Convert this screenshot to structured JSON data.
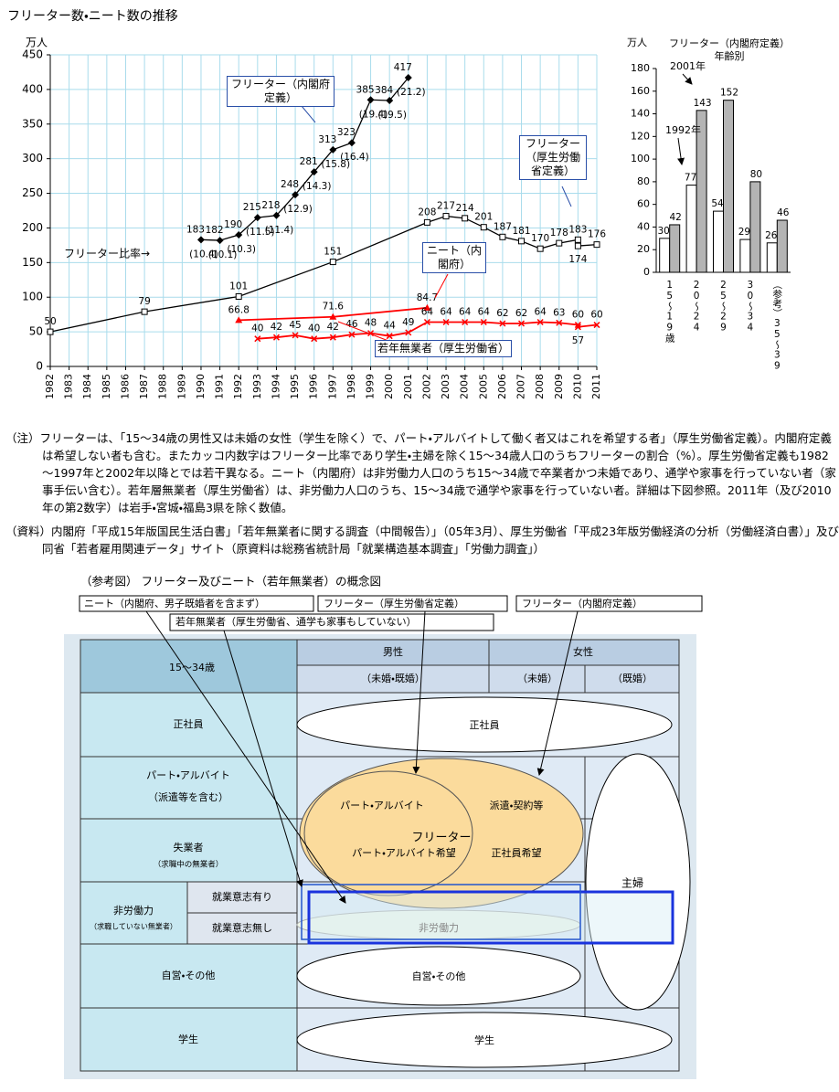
{
  "chart_data": [
    {
      "type": "line",
      "title": "フリーター数・ニート数の推移",
      "y_unit": "万人",
      "xlim": [
        1982,
        2011
      ],
      "xticks": [
        1982,
        1983,
        1984,
        1985,
        1986,
        1987,
        1988,
        1989,
        1990,
        1991,
        1992,
        1993,
        1994,
        1995,
        1996,
        1997,
        1998,
        1999,
        2000,
        2001,
        2002,
        2003,
        2004,
        2005,
        2006,
        2007,
        2008,
        2009,
        2010,
        2011
      ],
      "ylim": [
        0,
        450
      ],
      "yticks": [
        0,
        50,
        100,
        150,
        200,
        250,
        300,
        350,
        400,
        450
      ],
      "grid": true,
      "ratio_label": "フリーター比率→",
      "series": [
        {
          "name": "フリーター（内閣府定義）",
          "color": "#000000",
          "marker": "diamond",
          "x": [
            1990,
            1991,
            1992,
            1993,
            1994,
            1995,
            1996,
            1997,
            1998,
            1999,
            2000,
            2001
          ],
          "values": [
            183,
            182,
            190,
            215,
            218,
            248,
            281,
            313,
            323,
            385,
            384,
            417
          ],
          "ratio_labels": [
            "(10.4)",
            "(10.1)",
            "(10.3)",
            "(11.5)",
            "(11.4)",
            "(12.9)",
            "(14.3)",
            "(15.8)",
            "(16.4)",
            "(19.4)",
            "(19.5)",
            "(21.2)"
          ]
        },
        {
          "name": "フリーター（厚生労働省定義）",
          "color": "#000000",
          "marker": "square",
          "x": [
            1982,
            1987,
            1992,
            1997,
            2002,
            2003,
            2004,
            2005,
            2006,
            2007,
            2008,
            2009,
            2010,
            2010,
            2011
          ],
          "values": [
            50,
            79,
            101,
            151,
            208,
            217,
            214,
            201,
            187,
            181,
            170,
            178,
            183,
            174,
            176
          ]
        },
        {
          "name": "ニート（内閣府）",
          "color": "#ff0000",
          "marker": "triangle",
          "x": [
            1992,
            1997,
            2002
          ],
          "values": [
            66.8,
            71.6,
            84.7
          ]
        },
        {
          "name": "若年無業者（厚生労働省）",
          "color": "#ff0000",
          "marker": "x",
          "x": [
            1993,
            1994,
            1995,
            1996,
            1997,
            1998,
            1999,
            2000,
            2001,
            2002,
            2003,
            2004,
            2005,
            2006,
            2007,
            2008,
            2009,
            2010,
            2010,
            2011
          ],
          "values": [
            40,
            42,
            45,
            40,
            42,
            46,
            48,
            44,
            49,
            64,
            64,
            64,
            64,
            62,
            62,
            64,
            63,
            60,
            57,
            60
          ]
        }
      ]
    },
    {
      "type": "bar",
      "title": "フリーター（内閣府定義）年齢別",
      "y_unit": "万人",
      "categories": [
        "15～19歳",
        "20～24",
        "25～29",
        "30～34",
        "（参考）35～39"
      ],
      "ylim": [
        0,
        180
      ],
      "yticks": [
        0,
        20,
        40,
        60,
        80,
        100,
        120,
        140,
        160,
        180
      ],
      "grid": false,
      "series": [
        {
          "name": "1992年",
          "color": "#ffffff",
          "values": [
            30,
            77,
            54,
            29,
            26
          ]
        },
        {
          "name": "2001年",
          "color": "#b4b4b4",
          "values": [
            42,
            143,
            152,
            80,
            46
          ]
        }
      ]
    }
  ],
  "notes": [
    "（注）フリーターは、「15～34歳の男性又は未婚の女性（学生を除く）で、パート・アルバイトして働く者又はこれを希望する者」（厚生労働省定義）。内閣府定義は希望しない者も含む。またカッコ内数字はフリーター比率であり学生・主婦を除く15～34歳人口のうちフリーターの割合（%）。厚生労働省定義も1982～1997年と2002年以降とでは若干異なる。ニート（内閣府）は非労働力人口のうち15～34歳で卒業者かつ未婚であり、通学や家事を行っていない者（家事手伝い含む）。若年層無業者（厚生労働省）は、非労働力人口のうち、15～34歳で通学や家事を行っていない者。詳細は下図参照。2011年（及び2010年の第2数字）は岩手・宮城・福島3県を除く数値。",
    "（資料）内閣府「平成15年版国民生活白書」「若年無業者に関する調査（中間報告）」（05年3月）、厚生労働省「平成23年版労働経済の分析（労働経済白書）」及び同省「若者雇用関連データ」サイト（原資料は総務省統計局「就業構造基本調査」「労働力調査」）"
  ],
  "diagram": {
    "title": "（参考図） フリーター及びニート（若年無業者）の概念図",
    "labels": [
      "ニート（内閣府、男子既婚者を含まず）",
      "フリーター（厚生労働省定義）",
      "フリーター（内閣府定義）",
      "若年無業者（厚生労働省、通学も家事もしていない）"
    ],
    "header": {
      "age": "15～34歳",
      "male": "男性",
      "female": "女性",
      "male_status": "（未婚・既婚）",
      "female_unmarried": "（未婚）",
      "female_married": "（既婚）"
    },
    "rows": [
      {
        "label": "正社員"
      },
      {
        "label": "パート・アルバイト",
        "sub": "（派遣等を含む）"
      },
      {
        "label": "失業者",
        "sub": "（求職中の無業者）"
      },
      {
        "label": "非労働力",
        "sub": "（求職していない無業者）",
        "parts": [
          "就業意志有り",
          "就業意志無し"
        ]
      },
      {
        "label": "自営・その他"
      },
      {
        "label": "学生"
      }
    ],
    "regions": [
      "正社員",
      "パート・アルバイト",
      "派遣・契約等",
      "パート・アルバイト希望",
      "正社員希望",
      "フリーター",
      "主婦",
      "非労働力",
      "自営・その他",
      "学生"
    ]
  }
}
